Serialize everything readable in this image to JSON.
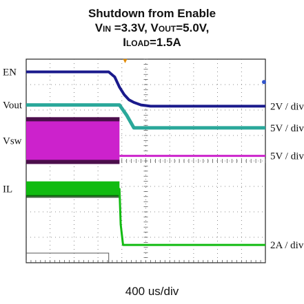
{
  "chart_data": {
    "type": "line",
    "title_line1": "Shutdown from Enable",
    "title_line2_parts": [
      "V",
      "IN",
      " =3.3V, V",
      "OUT",
      "=5.0V,"
    ],
    "title_line3_parts": [
      "I",
      "LOAD",
      "=1.5A"
    ],
    "xlabel": "400 us/div",
    "x_divisions": 10,
    "y_divisions": 8,
    "grid": true,
    "series": [
      {
        "name": "EN",
        "scale": "2V / div",
        "color": "#1a1a8c",
        "x": [
          0,
          3.45,
          3.7,
          3.9,
          4.1,
          4.3,
          4.5,
          4.8,
          5.2,
          6,
          10
        ],
        "y": [
          7.5,
          7.5,
          7.3,
          6.9,
          6.6,
          6.4,
          6.3,
          6.2,
          6.15,
          6.15,
          6.15
        ]
      },
      {
        "name": "Vout",
        "scale": "5V / div",
        "color": "#2aa89a",
        "x": [
          0,
          3.9,
          4.2,
          4.5,
          10
        ],
        "y": [
          6.2,
          6.2,
          5.8,
          5.3,
          5.3
        ]
      },
      {
        "name": "Vsw",
        "scale": "5V / div",
        "color": "#cc22cc",
        "x": [
          0,
          3.9,
          3.9,
          10
        ],
        "y": [
          4.8,
          4.8,
          4.2,
          4.2
        ]
      },
      {
        "name": "IL",
        "scale": "2A / div",
        "color": "#11bb11",
        "x": [
          0,
          3.9,
          3.95,
          4.05,
          10
        ],
        "y": [
          2.9,
          2.9,
          1.5,
          0.7,
          0.7
        ]
      }
    ]
  }
}
